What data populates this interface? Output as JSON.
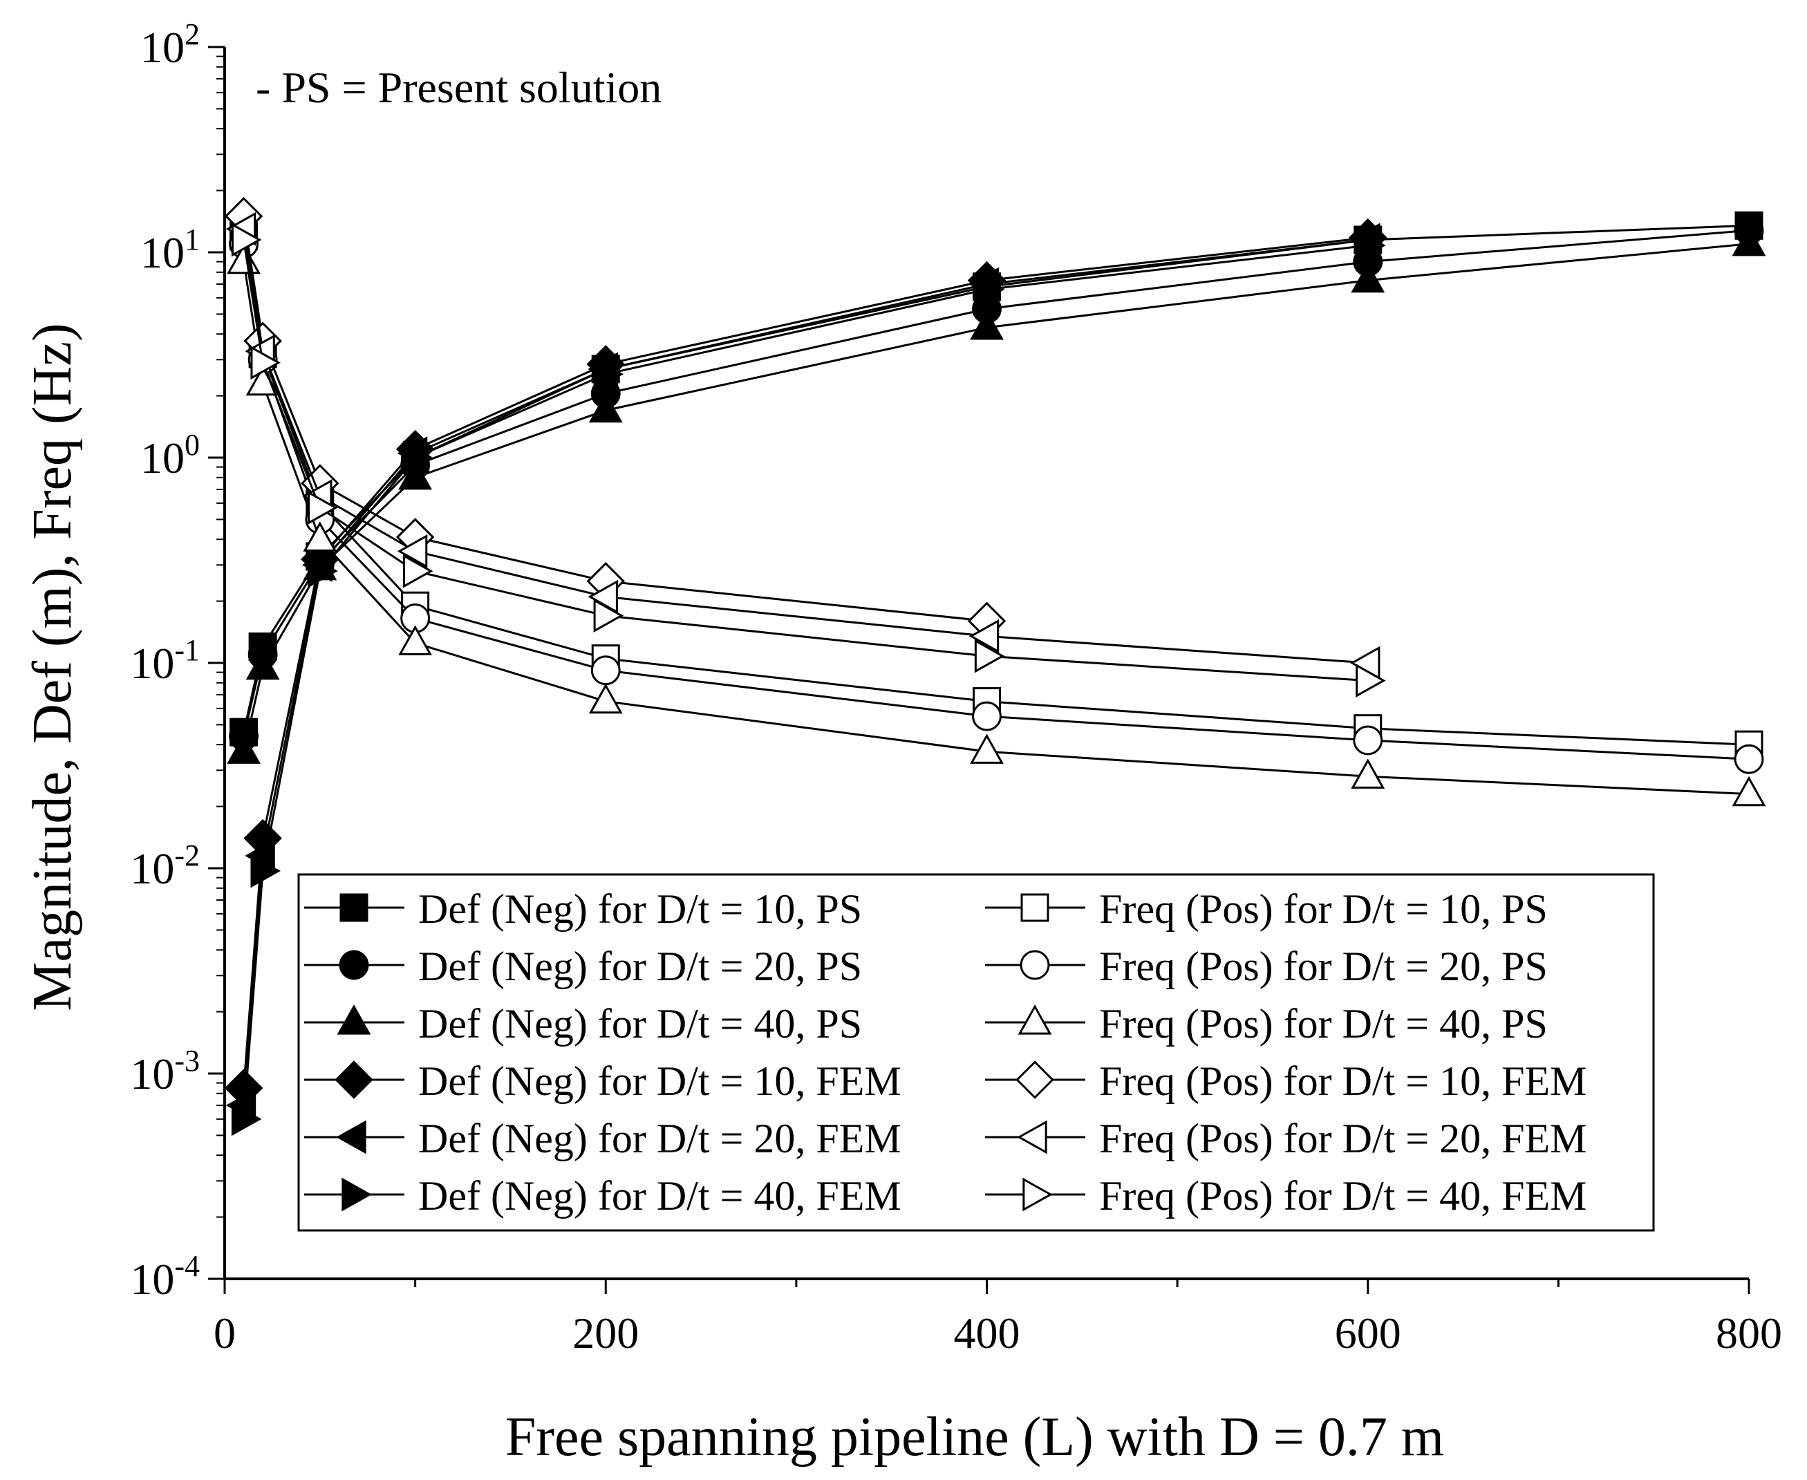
{
  "chart_data": {
    "type": "line",
    "xlabel": "Free spanning pipeline (L) with D = 0.7 m",
    "ylabel": "Magnitude, Def (m), Freq (Hz)",
    "annotation": "- PS = Present solution",
    "x_scale": "linear",
    "y_scale": "log",
    "xlim": [
      0,
      800
    ],
    "ylim": [
      0.0001,
      100
    ],
    "x_ticks": [
      0,
      200,
      400,
      600,
      800
    ],
    "x_tick_labels": [
      "0",
      "200",
      "400",
      "600",
      "800"
    ],
    "y_ticks": [
      0.0001,
      0.001,
      0.01,
      0.1,
      1,
      10,
      100
    ],
    "y_tick_labels": [
      {
        "base": "10",
        "exp": "-4"
      },
      {
        "base": "10",
        "exp": "-3"
      },
      {
        "base": "10",
        "exp": "-2"
      },
      {
        "base": "10",
        "exp": "-1"
      },
      {
        "base": "10",
        "exp": "0"
      },
      {
        "base": "10",
        "exp": "1"
      },
      {
        "base": "10",
        "exp": "2"
      }
    ],
    "legend_position": "bottom-right",
    "grid": false,
    "series": [
      {
        "name": "Def (Neg) for D/t = 10, PS",
        "marker": "square",
        "filled": true,
        "points": [
          [
            10,
            0.046
          ],
          [
            20,
            0.12
          ],
          [
            50,
            0.33
          ],
          [
            100,
            1.0
          ],
          [
            200,
            2.7
          ],
          [
            400,
            6.8
          ],
          [
            600,
            11.5
          ],
          [
            800,
            13.5
          ]
        ]
      },
      {
        "name": "Def (Neg) for D/t = 20, PS",
        "marker": "circle",
        "filled": true,
        "points": [
          [
            10,
            0.044
          ],
          [
            20,
            0.11
          ],
          [
            50,
            0.31
          ],
          [
            100,
            0.92
          ],
          [
            200,
            2.05
          ],
          [
            400,
            5.3
          ],
          [
            600,
            9.0
          ],
          [
            800,
            12.8
          ]
        ]
      },
      {
        "name": "Def (Neg) for D/t = 40, PS",
        "marker": "triangle-up",
        "filled": true,
        "points": [
          [
            10,
            0.037
          ],
          [
            20,
            0.095
          ],
          [
            50,
            0.29
          ],
          [
            100,
            0.8
          ],
          [
            200,
            1.7
          ],
          [
            400,
            4.3
          ],
          [
            600,
            7.3
          ],
          [
            800,
            11.0
          ]
        ]
      },
      {
        "name": "Def (Neg) for D/t = 10, FEM",
        "marker": "diamond",
        "filled": true,
        "points": [
          [
            10,
            0.00085
          ],
          [
            20,
            0.014
          ],
          [
            50,
            0.32
          ],
          [
            100,
            1.1
          ],
          [
            200,
            2.85
          ],
          [
            400,
            7.3
          ],
          [
            600,
            11.8
          ]
        ]
      },
      {
        "name": "Def (Neg) for D/t = 20, FEM",
        "marker": "triangle-left",
        "filled": true,
        "points": [
          [
            10,
            0.0007
          ],
          [
            20,
            0.0115
          ],
          [
            50,
            0.3
          ],
          [
            100,
            1.05
          ],
          [
            200,
            2.7
          ],
          [
            400,
            7.0
          ],
          [
            600,
            11.5
          ]
        ]
      },
      {
        "name": "Def (Neg) for D/t = 40, FEM",
        "marker": "triangle-right",
        "filled": true,
        "points": [
          [
            10,
            0.0006
          ],
          [
            20,
            0.0097
          ],
          [
            50,
            0.28
          ],
          [
            100,
            1.0
          ],
          [
            200,
            2.55
          ],
          [
            400,
            6.6
          ],
          [
            600,
            10.8
          ]
        ]
      },
      {
        "name": "Freq (Pos) for D/t = 10, PS",
        "marker": "square",
        "filled": false,
        "points": [
          [
            10,
            12.0
          ],
          [
            20,
            3.2
          ],
          [
            50,
            0.6
          ],
          [
            100,
            0.19
          ],
          [
            200,
            0.105
          ],
          [
            400,
            0.065
          ],
          [
            600,
            0.048
          ],
          [
            800,
            0.04
          ]
        ]
      },
      {
        "name": "Freq (Pos) for D/t = 20, PS",
        "marker": "circle",
        "filled": false,
        "points": [
          [
            10,
            11.0
          ],
          [
            20,
            3.0
          ],
          [
            50,
            0.5
          ],
          [
            100,
            0.165
          ],
          [
            200,
            0.092
          ],
          [
            400,
            0.055
          ],
          [
            600,
            0.042
          ],
          [
            800,
            0.034
          ]
        ]
      },
      {
        "name": "Freq (Pos) for D/t = 40, PS",
        "marker": "triangle-up",
        "filled": false,
        "points": [
          [
            10,
            9.0
          ],
          [
            20,
            2.3
          ],
          [
            50,
            0.4
          ],
          [
            100,
            0.125
          ],
          [
            200,
            0.065
          ],
          [
            400,
            0.037
          ],
          [
            600,
            0.028
          ],
          [
            800,
            0.023
          ]
        ]
      },
      {
        "name": "Freq (Pos) for D/t = 10, FEM",
        "marker": "diamond",
        "filled": false,
        "points": [
          [
            10,
            15.0
          ],
          [
            20,
            3.7
          ],
          [
            50,
            0.75
          ],
          [
            100,
            0.41
          ],
          [
            200,
            0.25
          ],
          [
            400,
            0.16
          ]
        ]
      },
      {
        "name": "Freq (Pos) for D/t = 20, FEM",
        "marker": "triangle-left",
        "filled": false,
        "points": [
          [
            10,
            13.0
          ],
          [
            20,
            3.3
          ],
          [
            50,
            0.65
          ],
          [
            100,
            0.35
          ],
          [
            200,
            0.21
          ],
          [
            400,
            0.135
          ],
          [
            600,
            0.1
          ]
        ]
      },
      {
        "name": "Freq (Pos) for D/t = 40, FEM",
        "marker": "triangle-right",
        "filled": false,
        "points": [
          [
            10,
            11.5
          ],
          [
            20,
            2.9
          ],
          [
            50,
            0.57
          ],
          [
            100,
            0.28
          ],
          [
            200,
            0.17
          ],
          [
            400,
            0.108
          ],
          [
            600,
            0.082
          ]
        ]
      }
    ]
  }
}
